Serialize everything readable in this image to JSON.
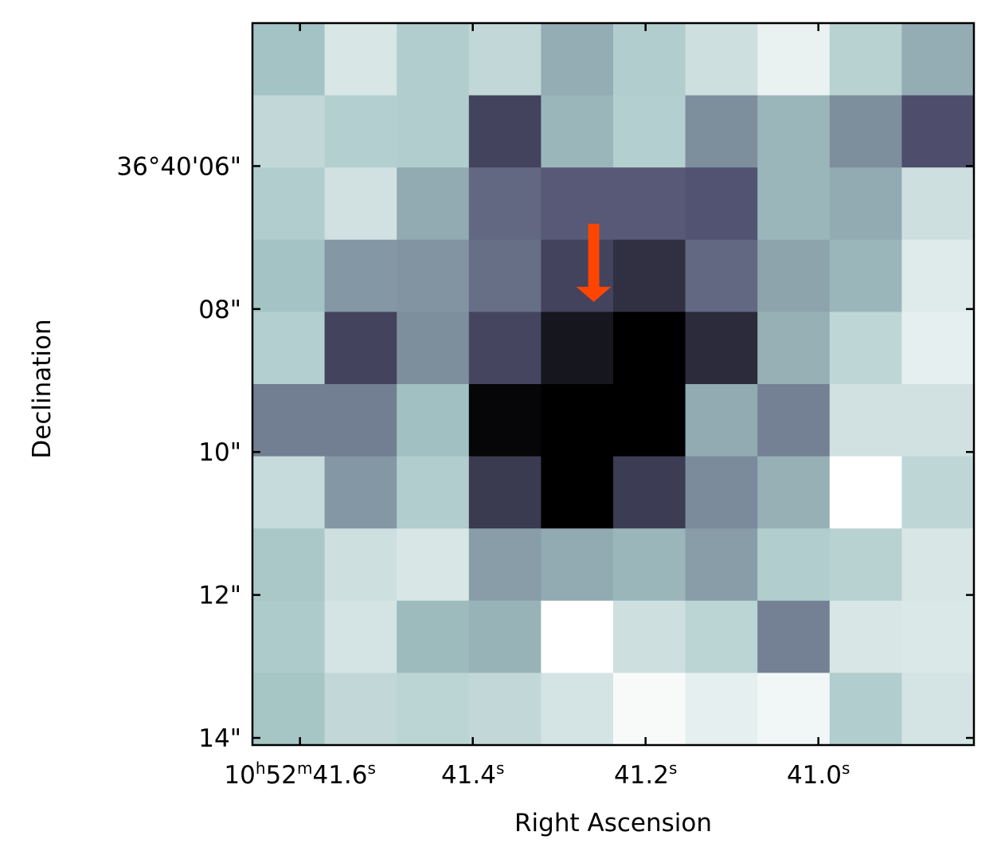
{
  "chart_data": {
    "type": "heatmap",
    "colormap": "bone",
    "xlabel": "Right Ascension",
    "ylabel": "Declination",
    "x_ticks": [
      {
        "label": "10h52m41.6s",
        "parts": [
          [
            "10",
            ""
          ],
          [
            "h",
            "sup"
          ],
          [
            "52",
            ""
          ],
          [
            "m",
            "sup"
          ],
          [
            "41.6",
            ""
          ],
          [
            "s",
            "sup"
          ]
        ],
        "value": 41.6
      },
      {
        "label": "41.4s",
        "parts": [
          [
            "41.4",
            ""
          ],
          [
            "s",
            "sup"
          ]
        ],
        "value": 41.4
      },
      {
        "label": "41.2s",
        "parts": [
          [
            "41.2",
            ""
          ],
          [
            "s",
            "sup"
          ]
        ],
        "value": 41.2
      },
      {
        "label": "41.0s",
        "parts": [
          [
            "41.0",
            ""
          ],
          [
            "s",
            "sup"
          ]
        ],
        "value": 41.0
      }
    ],
    "y_ticks": [
      {
        "label": "36°40'06\"",
        "value": 6
      },
      {
        "label": "08\"",
        "value": 8
      },
      {
        "label": "10\"",
        "value": 10
      },
      {
        "label": "12\"",
        "value": 12
      },
      {
        "label": "14\"",
        "value": 14
      }
    ],
    "x_range_seconds": [
      41.655,
      40.82
    ],
    "y_range_arcsec": [
      4.0,
      14.1
    ],
    "grid": false,
    "marker": {
      "type": "arrow",
      "color": "#ff4500",
      "direction": "down",
      "points_to": {
        "x": 41.26,
        "y": 7.9
      }
    },
    "values": [
      [
        0.74,
        0.89,
        0.78,
        0.83,
        0.67,
        0.78,
        0.86,
        0.94,
        0.8,
        0.67
      ],
      [
        0.83,
        0.79,
        0.78,
        0.31,
        0.7,
        0.79,
        0.57,
        0.7,
        0.57,
        0.36
      ],
      [
        0.78,
        0.87,
        0.66,
        0.45,
        0.4,
        0.4,
        0.38,
        0.7,
        0.66,
        0.86
      ],
      [
        0.74,
        0.6,
        0.59,
        0.47,
        0.31,
        0.22,
        0.45,
        0.64,
        0.7,
        0.91
      ],
      [
        0.79,
        0.31,
        0.57,
        0.32,
        0.1,
        0.0,
        0.2,
        0.68,
        0.82,
        0.93
      ],
      [
        0.52,
        0.52,
        0.73,
        0.03,
        0.0,
        0.0,
        0.66,
        0.53,
        0.87,
        0.87
      ],
      [
        0.84,
        0.6,
        0.78,
        0.27,
        0.0,
        0.28,
        0.56,
        0.68,
        1.0,
        0.82
      ],
      [
        0.76,
        0.86,
        0.89,
        0.62,
        0.66,
        0.7,
        0.62,
        0.78,
        0.8,
        0.89
      ],
      [
        0.77,
        0.88,
        0.71,
        0.69,
        1.0,
        0.86,
        0.81,
        0.53,
        0.89,
        0.9
      ],
      [
        0.75,
        0.83,
        0.81,
        0.83,
        0.88,
        0.98,
        0.93,
        0.96,
        0.78,
        0.88
      ]
    ]
  }
}
